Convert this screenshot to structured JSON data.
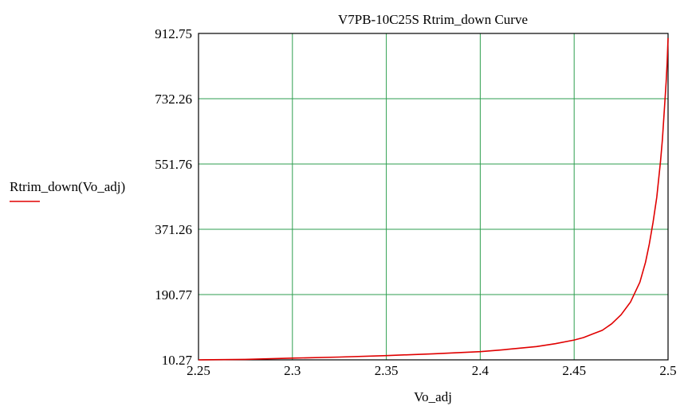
{
  "chart_data": {
    "type": "line",
    "title": "V7PB-10C25S Rtrim_down Curve",
    "xlabel": "Vo_adj",
    "ylabel": "",
    "xlim": [
      2.25,
      2.5
    ],
    "ylim": [
      10.27,
      912.75
    ],
    "x_ticks": [
      "2.25",
      "2.3",
      "2.35",
      "2.4",
      "2.45",
      "2.5"
    ],
    "y_ticks": [
      "10.27",
      "190.77",
      "371.26",
      "551.76",
      "732.26",
      "912.75"
    ],
    "grid": true,
    "legend_position": "left",
    "series": [
      {
        "name": "Rtrim_down(Vo_adj)",
        "color": "#e00000",
        "x": [
          2.25,
          2.275,
          2.3,
          2.325,
          2.35,
          2.375,
          2.4,
          2.41,
          2.42,
          2.43,
          2.44,
          2.45,
          2.455,
          2.46,
          2.465,
          2.47,
          2.475,
          2.48,
          2.485,
          2.488,
          2.49,
          2.492,
          2.494,
          2.495,
          2.496,
          2.497,
          2.498,
          2.499,
          2.4995,
          2.5
        ],
        "y": [
          10.27,
          11.5,
          15,
          18,
          22,
          27,
          33,
          37,
          42,
          47,
          55,
          65,
          72,
          82,
          92,
          110,
          135,
          170,
          225,
          280,
          330,
          390,
          460,
          510,
          560,
          620,
          700,
          780,
          830,
          900
        ]
      }
    ]
  },
  "colors": {
    "grid": "#2e9e4f",
    "axis": "#000000",
    "line": "#e00000"
  }
}
